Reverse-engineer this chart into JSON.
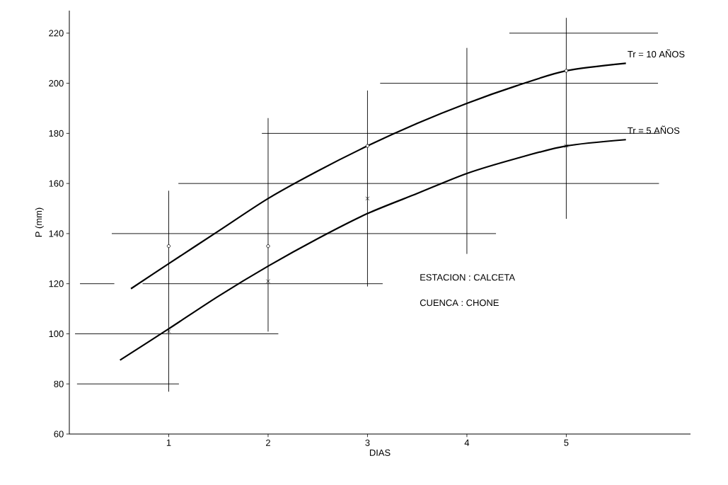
{
  "chart_data": {
    "type": "line",
    "xlabel": "DIAS",
    "ylabel": "P (mm)",
    "xlim": [
      0,
      6.25
    ],
    "ylim": [
      60,
      229
    ],
    "xticks": [
      1,
      2,
      3,
      4,
      5
    ],
    "yticks": [
      60,
      80,
      100,
      120,
      140,
      160,
      180,
      200,
      220
    ],
    "annotations": [
      "ESTACION : CALCETA",
      "CUENCA   : CHONE"
    ],
    "series": [
      {
        "name": "Tr = 10 AÑOS",
        "color": "#000000",
        "x": [
          0.62,
          1,
          1.5,
          2,
          2.5,
          3,
          3.5,
          4,
          4.5,
          5,
          5.6
        ],
        "values": [
          118,
          128,
          141,
          154,
          165,
          175,
          184,
          192,
          199,
          205,
          208
        ]
      },
      {
        "name": "Tr = 5 AÑOS",
        "color": "#000000",
        "x": [
          0.51,
          1,
          1.5,
          2,
          2.5,
          3,
          3.5,
          4,
          4.5,
          5,
          5.6
        ],
        "values": [
          89.5,
          102,
          115,
          127,
          138,
          148,
          156,
          164,
          170,
          175,
          177.5
        ]
      },
      {
        "type": "scatter",
        "marker": "circle",
        "color": "#000000",
        "x": [
          1,
          2,
          3,
          5
        ],
        "values": [
          135,
          135,
          175,
          205
        ]
      },
      {
        "type": "scatter",
        "marker": "cross",
        "color": "#000000",
        "x": [
          1,
          2,
          3,
          5
        ],
        "values": [
          101,
          121,
          154,
          175
        ]
      },
      {
        "type": "line",
        "color": "#000000",
        "x": [
          1,
          1
        ],
        "values": [
          77,
          157
        ]
      },
      {
        "type": "line",
        "color": "#000000",
        "x": [
          2,
          2
        ],
        "values": [
          101,
          186
        ]
      },
      {
        "type": "line",
        "color": "#000000",
        "x": [
          3,
          3
        ],
        "values": [
          119,
          197
        ]
      },
      {
        "color": "#000000",
        "x": [
          4,
          4
        ],
        "values": [
          132,
          214
        ]
      },
      {
        "type": "line",
        "color": "#000000",
        "x": [
          5,
          5
        ],
        "values": [
          146,
          226
        ]
      },
      {
        "type": "line",
        "color": "#000000",
        "x": [
          0.08,
          1.1
        ],
        "values": [
          80,
          80
        ]
      },
      {
        "type": "line",
        "color": "#000000",
        "x": [
          0.06,
          2.1
        ],
        "values": [
          100,
          100
        ]
      },
      {
        "type": "line",
        "color": "#000000",
        "x": [
          0.11,
          0.45
        ],
        "values": [
          120,
          120
        ]
      },
      {
        "type": "line",
        "color": "#000000",
        "x": [
          0.74,
          3.15
        ],
        "values": [
          120,
          120
        ]
      },
      {
        "type": "line",
        "color": "#000000",
        "x": [
          0.43,
          4.29
        ],
        "values": [
          140,
          140
        ]
      },
      {
        "type": "line",
        "color": "#000000",
        "x": [
          1.1,
          5.93
        ],
        "values": [
          160,
          160
        ]
      },
      {
        "type": "line",
        "color": "#000000",
        "x": [
          1.94,
          5.93
        ],
        "values": [
          180,
          180
        ]
      },
      {
        "type": "line",
        "color": "#000000",
        "x": [
          3.13,
          5.92
        ],
        "values": [
          200,
          200
        ]
      },
      {
        "type": "line",
        "color": "#000000",
        "x": [
          4.43,
          5.92
        ],
        "values": [
          220,
          220
        ]
      }
    ]
  }
}
